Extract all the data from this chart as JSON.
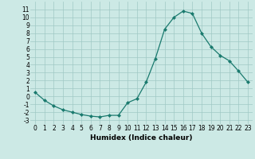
{
  "x": [
    0,
    1,
    2,
    3,
    4,
    5,
    6,
    7,
    8,
    9,
    10,
    11,
    12,
    13,
    14,
    15,
    16,
    17,
    18,
    19,
    20,
    21,
    22,
    23
  ],
  "y": [
    0.5,
    -0.5,
    -1.2,
    -1.7,
    -2.0,
    -2.3,
    -2.5,
    -2.6,
    -2.4,
    -2.4,
    -0.8,
    -0.3,
    1.8,
    4.8,
    8.5,
    10.0,
    10.8,
    10.5,
    8.0,
    6.3,
    5.2,
    4.5,
    3.2,
    1.8
  ],
  "line_color": "#1a7a6e",
  "marker": "D",
  "marker_size": 2,
  "bg_color": "#cce9e5",
  "grid_color": "#a0c8c4",
  "xlabel": "Humidex (Indice chaleur)",
  "ylim": [
    -3.5,
    12
  ],
  "yticks": [
    -3,
    -2,
    -1,
    0,
    1,
    2,
    3,
    4,
    5,
    6,
    7,
    8,
    9,
    10,
    11
  ],
  "xlim": [
    -0.5,
    23.5
  ],
  "xticks": [
    0,
    1,
    2,
    3,
    4,
    5,
    6,
    7,
    8,
    9,
    10,
    11,
    12,
    13,
    14,
    15,
    16,
    17,
    18,
    19,
    20,
    21,
    22,
    23
  ],
  "tick_fontsize": 5.5,
  "label_fontsize": 6.5
}
